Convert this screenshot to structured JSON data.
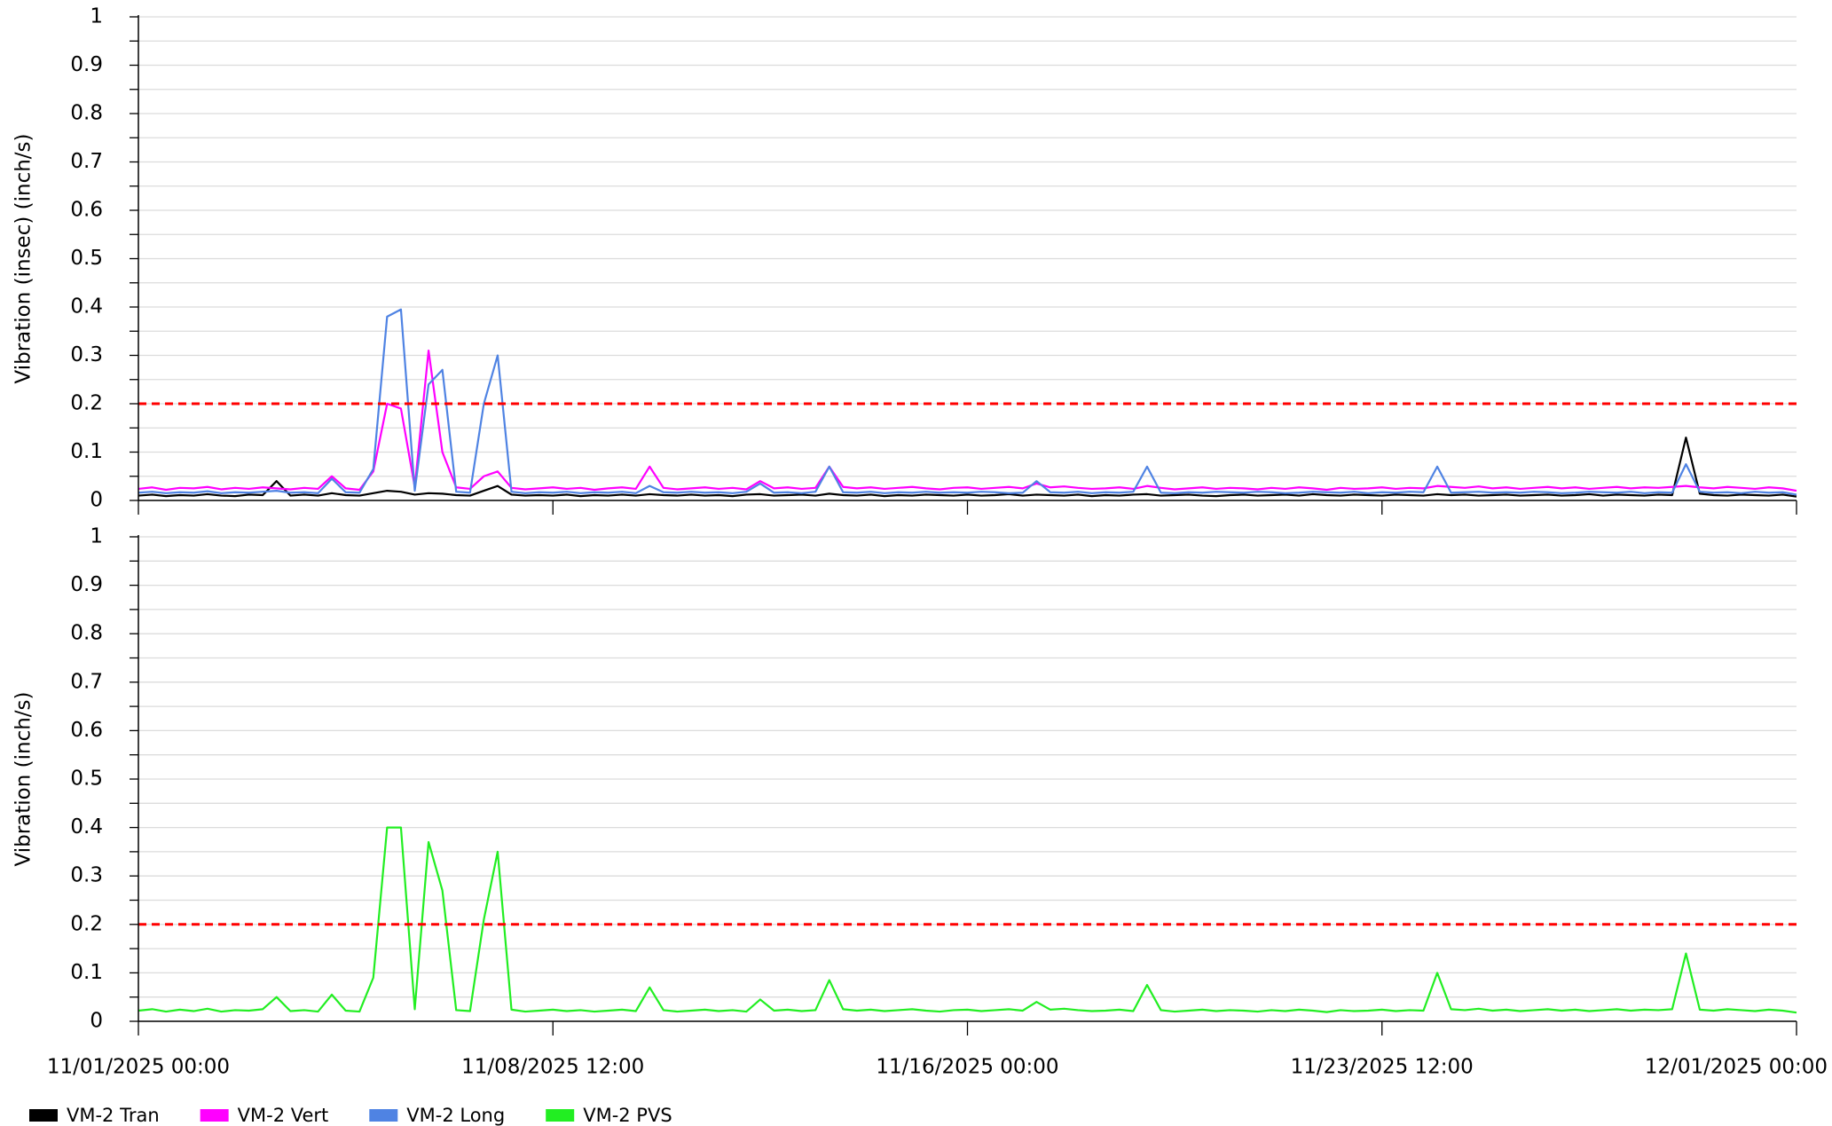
{
  "chart_data": [
    {
      "type": "line",
      "y_label": "Vibration (insec) (inch/s)",
      "ylim": [
        0,
        1
      ],
      "yticks": [
        0,
        0.1,
        0.2,
        0.3,
        0.4,
        0.5,
        0.6,
        0.7,
        0.8,
        0.9,
        1
      ],
      "minor_yticks": [
        0.05,
        0.15,
        0.25,
        0.35,
        0.45,
        0.55,
        0.65,
        0.75,
        0.85,
        0.95
      ],
      "grid": true,
      "xlim": [
        "11/01/2025 00:00",
        "12/01/2025 00:00"
      ],
      "threshold": {
        "value": 0.2,
        "color": "#ff0000"
      },
      "x": [
        "11/01/2025 00:00",
        "11/01/2025 06:00",
        "11/01/2025 12:00",
        "11/01/2025 18:00",
        "11/02/2025 00:00",
        "11/02/2025 06:00",
        "11/02/2025 12:00",
        "11/02/2025 18:00",
        "11/03/2025 00:00",
        "11/03/2025 06:00",
        "11/03/2025 12:00",
        "11/03/2025 18:00",
        "11/04/2025 00:00",
        "11/04/2025 06:00",
        "11/04/2025 12:00",
        "11/04/2025 18:00",
        "11/05/2025 00:00",
        "11/05/2025 06:00",
        "11/05/2025 12:00",
        "11/05/2025 18:00",
        "11/06/2025 00:00",
        "11/06/2025 06:00",
        "11/06/2025 12:00",
        "11/06/2025 18:00",
        "11/07/2025 00:00",
        "11/07/2025 06:00",
        "11/07/2025 12:00",
        "11/07/2025 18:00",
        "11/08/2025 00:00",
        "11/08/2025 06:00",
        "11/08/2025 12:00",
        "11/08/2025 18:00",
        "11/09/2025 00:00",
        "11/09/2025 06:00",
        "11/09/2025 12:00",
        "11/09/2025 18:00",
        "11/10/2025 00:00",
        "11/10/2025 06:00",
        "11/10/2025 12:00",
        "11/10/2025 18:00",
        "11/11/2025 00:00",
        "11/11/2025 06:00",
        "11/11/2025 12:00",
        "11/11/2025 18:00",
        "11/12/2025 00:00",
        "11/12/2025 06:00",
        "11/12/2025 12:00",
        "11/12/2025 18:00",
        "11/13/2025 00:00",
        "11/13/2025 06:00",
        "11/13/2025 12:00",
        "11/13/2025 18:00",
        "11/14/2025 00:00",
        "11/14/2025 06:00",
        "11/14/2025 12:00",
        "11/14/2025 18:00",
        "11/15/2025 00:00",
        "11/15/2025 06:00",
        "11/15/2025 12:00",
        "11/15/2025 18:00",
        "11/16/2025 00:00",
        "11/16/2025 06:00",
        "11/16/2025 12:00",
        "11/16/2025 18:00",
        "11/17/2025 00:00",
        "11/17/2025 06:00",
        "11/17/2025 12:00",
        "11/17/2025 18:00",
        "11/18/2025 00:00",
        "11/18/2025 06:00",
        "11/18/2025 12:00",
        "11/18/2025 18:00",
        "11/19/2025 00:00",
        "11/19/2025 06:00",
        "11/19/2025 12:00",
        "11/19/2025 18:00",
        "11/20/2025 00:00",
        "11/20/2025 06:00",
        "11/20/2025 12:00",
        "11/20/2025 18:00",
        "11/21/2025 00:00",
        "11/21/2025 06:00",
        "11/21/2025 12:00",
        "11/21/2025 18:00",
        "11/22/2025 00:00",
        "11/22/2025 06:00",
        "11/22/2025 12:00",
        "11/22/2025 18:00",
        "11/23/2025 00:00",
        "11/23/2025 06:00",
        "11/23/2025 12:00",
        "11/23/2025 18:00",
        "11/24/2025 00:00",
        "11/24/2025 06:00",
        "11/24/2025 12:00",
        "11/24/2025 18:00",
        "11/25/2025 00:00",
        "11/25/2025 06:00",
        "11/25/2025 12:00",
        "11/25/2025 18:00",
        "11/26/2025 00:00",
        "11/26/2025 06:00",
        "11/26/2025 12:00",
        "11/26/2025 18:00",
        "11/27/2025 00:00",
        "11/27/2025 06:00",
        "11/27/2025 12:00",
        "11/27/2025 18:00",
        "11/28/2025 00:00",
        "11/28/2025 06:00",
        "11/28/2025 12:00",
        "11/28/2025 18:00",
        "11/29/2025 00:00",
        "11/29/2025 06:00",
        "11/29/2025 12:00",
        "11/29/2025 18:00",
        "11/30/2025 00:00",
        "11/30/2025 06:00",
        "11/30/2025 12:00",
        "11/30/2025 18:00",
        "12/01/2025 00:00"
      ],
      "series": [
        {
          "name": "VM-2 Tran",
          "color": "#000000",
          "values": [
            0.01,
            0.012,
            0.009,
            0.011,
            0.01,
            0.013,
            0.01,
            0.009,
            0.012,
            0.011,
            0.04,
            0.01,
            0.012,
            0.01,
            0.015,
            0.011,
            0.01,
            0.015,
            0.02,
            0.018,
            0.012,
            0.015,
            0.014,
            0.011,
            0.01,
            0.02,
            0.03,
            0.012,
            0.01,
            0.011,
            0.01,
            0.012,
            0.009,
            0.011,
            0.01,
            0.012,
            0.01,
            0.013,
            0.011,
            0.01,
            0.012,
            0.01,
            0.011,
            0.009,
            0.012,
            0.013,
            0.01,
            0.011,
            0.012,
            0.01,
            0.014,
            0.011,
            0.01,
            0.012,
            0.009,
            0.011,
            0.01,
            0.012,
            0.011,
            0.01,
            0.012,
            0.01,
            0.011,
            0.013,
            0.01,
            0.012,
            0.011,
            0.01,
            0.012,
            0.009,
            0.011,
            0.01,
            0.012,
            0.013,
            0.01,
            0.011,
            0.012,
            0.01,
            0.009,
            0.011,
            0.012,
            0.01,
            0.011,
            0.012,
            0.01,
            0.013,
            0.011,
            0.01,
            0.012,
            0.011,
            0.01,
            0.012,
            0.011,
            0.01,
            0.013,
            0.011,
            0.012,
            0.01,
            0.011,
            0.012,
            0.01,
            0.011,
            0.012,
            0.01,
            0.011,
            0.013,
            0.01,
            0.012,
            0.011,
            0.01,
            0.012,
            0.011,
            0.13,
            0.014,
            0.011,
            0.01,
            0.012,
            0.011,
            0.01,
            0.012,
            0.008
          ]
        },
        {
          "name": "VM-2 Vert",
          "color": "#ff00ff",
          "values": [
            0.024,
            0.027,
            0.022,
            0.026,
            0.025,
            0.028,
            0.023,
            0.026,
            0.024,
            0.027,
            0.025,
            0.023,
            0.026,
            0.024,
            0.05,
            0.025,
            0.022,
            0.06,
            0.2,
            0.19,
            0.028,
            0.31,
            0.1,
            0.027,
            0.024,
            0.05,
            0.06,
            0.026,
            0.023,
            0.025,
            0.027,
            0.024,
            0.026,
            0.022,
            0.025,
            0.027,
            0.024,
            0.07,
            0.026,
            0.023,
            0.025,
            0.027,
            0.024,
            0.026,
            0.023,
            0.04,
            0.025,
            0.027,
            0.024,
            0.026,
            0.07,
            0.028,
            0.025,
            0.027,
            0.024,
            0.026,
            0.028,
            0.025,
            0.023,
            0.026,
            0.027,
            0.024,
            0.026,
            0.028,
            0.025,
            0.035,
            0.027,
            0.029,
            0.026,
            0.024,
            0.025,
            0.027,
            0.024,
            0.03,
            0.026,
            0.023,
            0.025,
            0.027,
            0.024,
            0.026,
            0.025,
            0.023,
            0.026,
            0.024,
            0.027,
            0.025,
            0.022,
            0.026,
            0.024,
            0.025,
            0.027,
            0.024,
            0.026,
            0.025,
            0.03,
            0.028,
            0.026,
            0.029,
            0.025,
            0.027,
            0.024,
            0.026,
            0.028,
            0.025,
            0.027,
            0.024,
            0.026,
            0.028,
            0.025,
            0.027,
            0.026,
            0.028,
            0.03,
            0.027,
            0.025,
            0.028,
            0.026,
            0.024,
            0.027,
            0.025,
            0.02
          ]
        },
        {
          "name": "VM-2 Long",
          "color": "#4f83e3",
          "values": [
            0.016,
            0.018,
            0.015,
            0.017,
            0.016,
            0.019,
            0.015,
            0.017,
            0.016,
            0.018,
            0.02,
            0.016,
            0.017,
            0.015,
            0.045,
            0.017,
            0.016,
            0.065,
            0.38,
            0.395,
            0.02,
            0.24,
            0.27,
            0.018,
            0.016,
            0.2,
            0.3,
            0.018,
            0.015,
            0.017,
            0.016,
            0.018,
            0.015,
            0.017,
            0.016,
            0.018,
            0.015,
            0.03,
            0.017,
            0.016,
            0.018,
            0.016,
            0.017,
            0.015,
            0.018,
            0.035,
            0.016,
            0.017,
            0.015,
            0.018,
            0.07,
            0.017,
            0.016,
            0.018,
            0.015,
            0.017,
            0.016,
            0.018,
            0.016,
            0.017,
            0.016,
            0.018,
            0.017,
            0.015,
            0.016,
            0.04,
            0.017,
            0.016,
            0.018,
            0.015,
            0.017,
            0.016,
            0.018,
            0.07,
            0.016,
            0.015,
            0.017,
            0.016,
            0.018,
            0.017,
            0.016,
            0.018,
            0.017,
            0.015,
            0.016,
            0.018,
            0.017,
            0.016,
            0.018,
            0.015,
            0.017,
            0.016,
            0.018,
            0.017,
            0.07,
            0.016,
            0.017,
            0.018,
            0.016,
            0.017,
            0.016,
            0.018,
            0.017,
            0.015,
            0.016,
            0.018,
            0.017,
            0.016,
            0.018,
            0.015,
            0.017,
            0.016,
            0.075,
            0.018,
            0.016,
            0.017,
            0.015,
            0.018,
            0.016,
            0.017,
            0.012
          ]
        }
      ]
    },
    {
      "type": "line",
      "y_label": "Vibration (inch/s)",
      "ylim": [
        0,
        1
      ],
      "yticks": [
        0,
        0.1,
        0.2,
        0.3,
        0.4,
        0.5,
        0.6,
        0.7,
        0.8,
        0.9,
        1
      ],
      "minor_yticks": [
        0.05,
        0.15,
        0.25,
        0.35,
        0.45,
        0.55,
        0.65,
        0.75,
        0.85,
        0.95
      ],
      "grid": true,
      "xlim": [
        "11/01/2025 00:00",
        "12/01/2025 00:00"
      ],
      "xticks": [
        "11/01/2025 00:00",
        "11/08/2025 12:00",
        "11/16/2025 00:00",
        "11/23/2025 12:00",
        "12/01/2025 00:00"
      ],
      "threshold": {
        "value": 0.2,
        "color": "#ff0000"
      },
      "x": [
        "11/01/2025 00:00",
        "11/01/2025 06:00",
        "11/01/2025 12:00",
        "11/01/2025 18:00",
        "11/02/2025 00:00",
        "11/02/2025 06:00",
        "11/02/2025 12:00",
        "11/02/2025 18:00",
        "11/03/2025 00:00",
        "11/03/2025 06:00",
        "11/03/2025 12:00",
        "11/03/2025 18:00",
        "11/04/2025 00:00",
        "11/04/2025 06:00",
        "11/04/2025 12:00",
        "11/04/2025 18:00",
        "11/05/2025 00:00",
        "11/05/2025 06:00",
        "11/05/2025 12:00",
        "11/05/2025 18:00",
        "11/06/2025 00:00",
        "11/06/2025 06:00",
        "11/06/2025 12:00",
        "11/06/2025 18:00",
        "11/07/2025 00:00",
        "11/07/2025 06:00",
        "11/07/2025 12:00",
        "11/07/2025 18:00",
        "11/08/2025 00:00",
        "11/08/2025 06:00",
        "11/08/2025 12:00",
        "11/08/2025 18:00",
        "11/09/2025 00:00",
        "11/09/2025 06:00",
        "11/09/2025 12:00",
        "11/09/2025 18:00",
        "11/10/2025 00:00",
        "11/10/2025 06:00",
        "11/10/2025 12:00",
        "11/10/2025 18:00",
        "11/11/2025 00:00",
        "11/11/2025 06:00",
        "11/11/2025 12:00",
        "11/11/2025 18:00",
        "11/12/2025 00:00",
        "11/12/2025 06:00",
        "11/12/2025 12:00",
        "11/12/2025 18:00",
        "11/13/2025 00:00",
        "11/13/2025 06:00",
        "11/13/2025 12:00",
        "11/13/2025 18:00",
        "11/14/2025 00:00",
        "11/14/2025 06:00",
        "11/14/2025 12:00",
        "11/14/2025 18:00",
        "11/15/2025 00:00",
        "11/15/2025 06:00",
        "11/15/2025 12:00",
        "11/15/2025 18:00",
        "11/16/2025 00:00",
        "11/16/2025 06:00",
        "11/16/2025 12:00",
        "11/16/2025 18:00",
        "11/17/2025 00:00",
        "11/17/2025 06:00",
        "11/17/2025 12:00",
        "11/17/2025 18:00",
        "11/18/2025 00:00",
        "11/18/2025 06:00",
        "11/18/2025 12:00",
        "11/18/2025 18:00",
        "11/19/2025 00:00",
        "11/19/2025 06:00",
        "11/19/2025 12:00",
        "11/19/2025 18:00",
        "11/20/2025 00:00",
        "11/20/2025 06:00",
        "11/20/2025 12:00",
        "11/20/2025 18:00",
        "11/21/2025 00:00",
        "11/21/2025 06:00",
        "11/21/2025 12:00",
        "11/21/2025 18:00",
        "11/22/2025 00:00",
        "11/22/2025 06:00",
        "11/22/2025 12:00",
        "11/22/2025 18:00",
        "11/23/2025 00:00",
        "11/23/2025 06:00",
        "11/23/2025 12:00",
        "11/23/2025 18:00",
        "11/24/2025 00:00",
        "11/24/2025 06:00",
        "11/24/2025 12:00",
        "11/24/2025 18:00",
        "11/25/2025 00:00",
        "11/25/2025 06:00",
        "11/25/2025 12:00",
        "11/25/2025 18:00",
        "11/26/2025 00:00",
        "11/26/2025 06:00",
        "11/26/2025 12:00",
        "11/26/2025 18:00",
        "11/27/2025 00:00",
        "11/27/2025 06:00",
        "11/27/2025 12:00",
        "11/27/2025 18:00",
        "11/28/2025 00:00",
        "11/28/2025 06:00",
        "11/28/2025 12:00",
        "11/28/2025 18:00",
        "11/29/2025 00:00",
        "11/29/2025 06:00",
        "11/29/2025 12:00",
        "11/29/2025 18:00",
        "11/30/2025 00:00",
        "11/30/2025 06:00",
        "11/30/2025 12:00",
        "11/30/2025 18:00",
        "12/01/2025 00:00"
      ],
      "series": [
        {
          "name": "VM-2 PVS",
          "color": "#22ee22",
          "values": [
            0.022,
            0.025,
            0.02,
            0.024,
            0.021,
            0.026,
            0.02,
            0.023,
            0.022,
            0.025,
            0.05,
            0.021,
            0.023,
            0.02,
            0.055,
            0.022,
            0.02,
            0.09,
            0.4,
            0.4,
            0.025,
            0.37,
            0.27,
            0.023,
            0.021,
            0.21,
            0.35,
            0.024,
            0.02,
            0.022,
            0.024,
            0.021,
            0.023,
            0.02,
            0.022,
            0.024,
            0.021,
            0.07,
            0.023,
            0.02,
            0.022,
            0.024,
            0.021,
            0.023,
            0.02,
            0.045,
            0.022,
            0.024,
            0.021,
            0.023,
            0.085,
            0.025,
            0.022,
            0.024,
            0.021,
            0.023,
            0.025,
            0.022,
            0.02,
            0.023,
            0.024,
            0.021,
            0.023,
            0.025,
            0.022,
            0.04,
            0.024,
            0.026,
            0.023,
            0.021,
            0.022,
            0.024,
            0.021,
            0.075,
            0.023,
            0.02,
            0.022,
            0.024,
            0.021,
            0.023,
            0.022,
            0.02,
            0.023,
            0.021,
            0.024,
            0.022,
            0.019,
            0.023,
            0.021,
            0.022,
            0.024,
            0.021,
            0.023,
            0.022,
            0.1,
            0.025,
            0.023,
            0.026,
            0.022,
            0.024,
            0.021,
            0.023,
            0.025,
            0.022,
            0.024,
            0.021,
            0.023,
            0.025,
            0.022,
            0.024,
            0.023,
            0.025,
            0.14,
            0.024,
            0.022,
            0.025,
            0.023,
            0.021,
            0.024,
            0.022,
            0.018
          ]
        }
      ]
    }
  ]
}
